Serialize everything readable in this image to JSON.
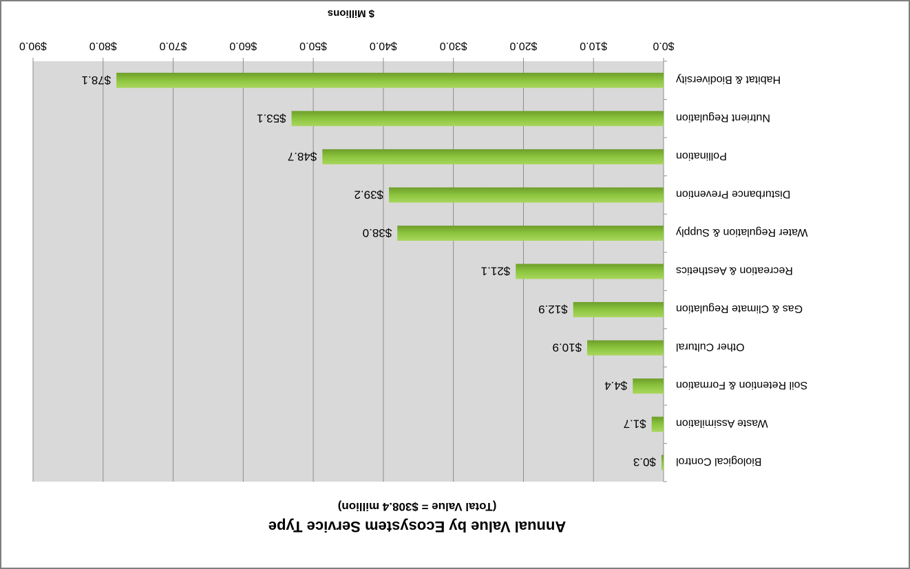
{
  "chart_data": {
    "type": "bar",
    "orientation": "horizontal",
    "title": "Annual Value by Ecosystem Service Type",
    "subtitle": "(Total Value = $308.4 million)",
    "xlabel": "$ Millions",
    "ylabel": "",
    "xlim": [
      0,
      90
    ],
    "tick_labels": [
      "$0.0",
      "$10.0",
      "$20.0",
      "$30.0",
      "$40.0",
      "$50.0",
      "$60.0",
      "$70.0",
      "$80.0",
      "$90.0"
    ],
    "categories": [
      "Habitat & Biodiversity",
      "Nutrient Regulation",
      "Pollination",
      "Disturbance Prevention",
      "Water Regulation & Supply",
      "Recreation & Aesthetics",
      "Gas & Climate Regulation",
      "Other Cultural",
      "Soil Retention & Formation",
      "Waste Assimilation",
      "Biological Control"
    ],
    "values": [
      78.1,
      53.1,
      48.7,
      39.2,
      38.0,
      21.1,
      12.9,
      10.9,
      4.4,
      1.7,
      0.3
    ],
    "data_labels": [
      "$78.1",
      "$53.1",
      "$48.7",
      "$39.2",
      "$38.0",
      "$21.1",
      "$12.9",
      "$10.9",
      "$4.4",
      "$1.7",
      "$0.3"
    ],
    "grid": true,
    "legend": "none",
    "bar_color": "#8cc53e",
    "plot_background": "#d9d9d9",
    "image_rotated_degrees": 180
  }
}
